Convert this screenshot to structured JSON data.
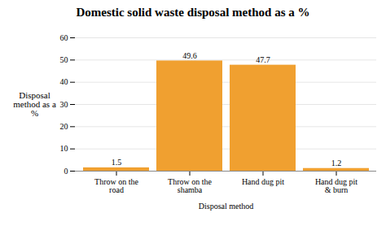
{
  "chart_data": {
    "type": "bar",
    "title": "Domestic solid waste disposal method as a %",
    "categories": [
      "Throw on the\nroad",
      "Throw on the\nshamba",
      "Hand dug pit",
      "Hand dug pit\n& burn"
    ],
    "values": [
      1.5,
      49.6,
      47.7,
      1.2
    ],
    "color": "#F0A030",
    "xlabel": "Disposal method",
    "ylabel": "Disposal\nmethod as a\n%",
    "ylim": [
      0,
      60
    ],
    "yticks": [
      0,
      10,
      20,
      30,
      40,
      50,
      60
    ],
    "grid": true,
    "data_labels": true
  }
}
